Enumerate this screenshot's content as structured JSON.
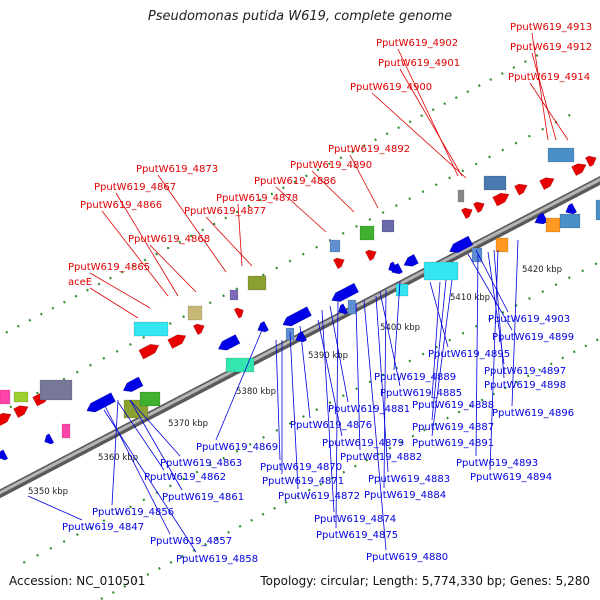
{
  "title": "Pseudomonas putida W619, complete genome",
  "footer": {
    "accession": "Accession: NC_010501",
    "topology": "Topology: circular; Length: 5,774,330 bp; Genes: 5,280"
  },
  "colors": {
    "backbone": "#8a8a8a",
    "forward_label": "#dd0000",
    "reverse_label": "#0000dd",
    "dot_green": "#2f8f2f"
  },
  "kbp_labels": [
    "5350 kbp",
    "5360 kbp",
    "5370 kbp",
    "5380 kbp",
    "5390 kbp",
    "5400 kbp",
    "5410 kbp",
    "5420 kbp"
  ],
  "forward_genes": [
    "PputW619_4913",
    "PputW619_4902",
    "PputW619_4912",
    "PputW619_4901",
    "PputW619_4914",
    "PputW619_4900",
    "PputW619_4892",
    "PputW619_4890",
    "PputW619_4873",
    "PputW619_4886",
    "PputW619_4867",
    "PputW619_4878",
    "PputW619_4866",
    "PputW619_4877",
    "PputW619_4868",
    "PputW619_4865",
    "aceE"
  ],
  "reverse_genes": [
    "PputW619_4903",
    "PputW619_4899",
    "PputW619_4895",
    "PputW619_4897",
    "PputW619_4889",
    "PputW619_4898",
    "PputW619_4885",
    "PputW619_4881",
    "PputW619_4888",
    "PputW619_4896",
    "PputW619_4876",
    "PputW619_4887",
    "PputW619_4879",
    "PputW619_4891",
    "PputW619_4869",
    "PputW619_4882",
    "PputW619_4863",
    "PputW619_4870",
    "PputW619_4893",
    "PputW619_4862",
    "PputW619_4871",
    "PputW619_4883",
    "PputW619_4894",
    "PputW619_4861",
    "PputW619_4872",
    "PputW619_4884",
    "PputW619_4856",
    "PputW619_4874",
    "PputW619_4847",
    "PputW619_4875",
    "PputW619_4857",
    "PputW619_4880",
    "PputW619_4858"
  ]
}
